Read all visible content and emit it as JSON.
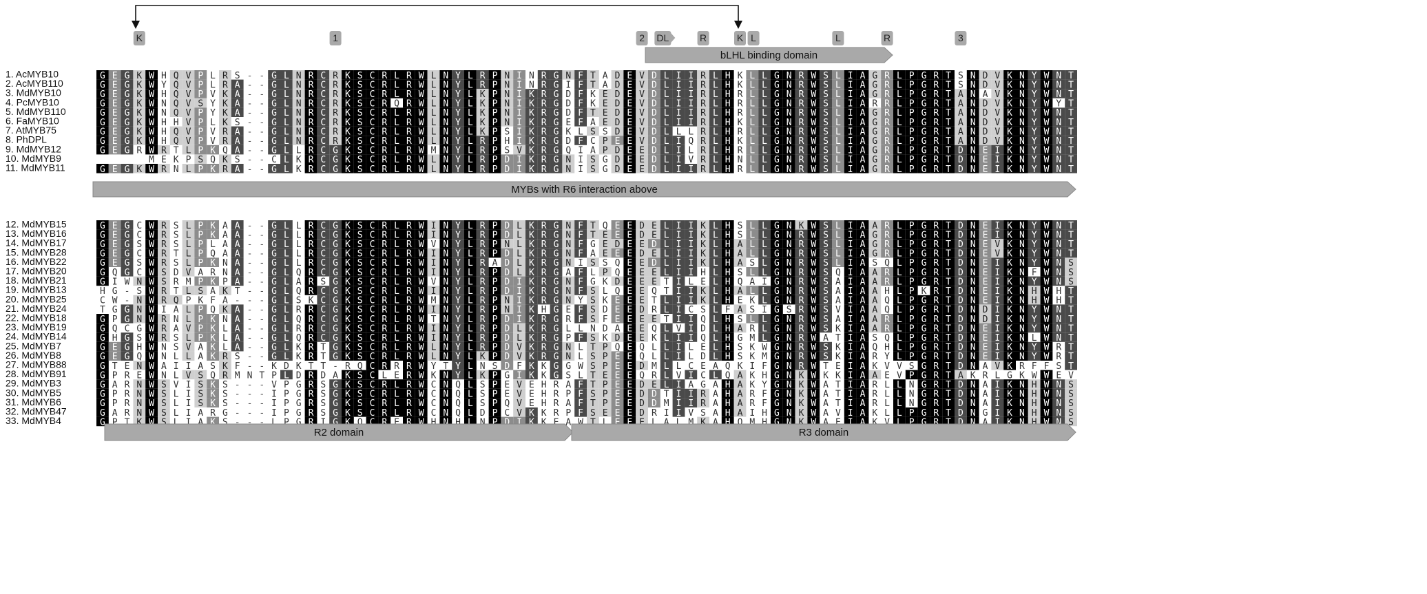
{
  "annotations": [
    "K",
    "1",
    "2",
    "DL",
    "R",
    "K",
    "L",
    "L",
    "R",
    "3"
  ],
  "domains": {
    "blhl": "bLHL binding domain",
    "r6": "MYBs with R6 interaction above",
    "r2": "R2 domain",
    "r3": "R3 domain"
  },
  "groups": [
    {
      "rows": [
        {
          "label": "1. AcMYB10",
          "sequence": "GEGKWHQVPLRS--GLNRCRKSCRLRWLNYLRPNINRGNFTADEVDLIIRLHKLLGNRWSLIAGRLPGRTSNDVKNYWNT"
        },
        {
          "label": "2. AcMYB110",
          "sequence": "GEGKWYQVPLRA--GLNRCRKSCRLRWLNYLRPNINRGIFTADEVDLIIRLHKLLGNRWSLIAGRLPGRTSNDVKNYWNT"
        },
        {
          "label": "3. MdMYB10",
          "sequence": "GEGKWHQVPVKA--GLNRCRKSCRLRWLNYLKPNIKRGDFKEDEVDLIIRLHRLLGNRWSLIAGRLPGRTANAVKNYWNT"
        },
        {
          "label": "4. PcMYB10",
          "sequence": "GEGKWNQVSYKA--GLNRCRKSCRQRWLNYLKPNIKRGDFKEDEVDLIIRLHRLLGNRWSLIARRLPGRTANDVKNYWYT"
        },
        {
          "label": "5. MdMYB110",
          "sequence": "GEGKWNQVPYKA--GLNRCRKSCRLRWLNYLKPNIKRGDFTEDEVDLIIRLHRLLGNRWSLIAGRLPGRTANDVKNYWNT"
        },
        {
          "label": "6. FaMYB10",
          "sequence": "GEGKWHHVPLKS--GLNRCRKSCRLRWLNYLKPNIKRGEFAEDEVDLIIRLHKLLGNRWSLIAGRLPGRTANDVKNYWNT"
        },
        {
          "label": "7. AtMYB75",
          "sequence": "GEGKWHQVPVRA--GLNRCRKSCRLRWLNYLKPSIKRGKLSSDEVDLLLRLHRLLGNRWSLIAGRLPGRTANDVKNYWNT"
        },
        {
          "label": "8. PhDPL",
          "sequence": "GEGKWHQVPVRA--GLNRCRKSCRLRWLNYLRPHIKRGDFCPEEVDLIQRLHKLLGNRWSLIAGRLPGRTANDVKNYWNT"
        },
        {
          "label": "9. MdMYB12",
          "sequence": "GEGRWRTLPKQA--GLLRCGKSCRLRWMNYLRPSVKRGQIAPDEEDLILRLHRLLGNRWSLIAGRLPGRTDNEIKNYWNT"
        },
        {
          "label": "10. MdMYB9",
          "sequence": "    MEKPSQKS--CLKRCGKSCRLRWLNYLRPDIKRGNISGDEEDLIVRLHNLLGNRWSLIAGRLPGRTDNEIKNYWNT"
        },
        {
          "label": "11. MdMYB11",
          "sequence": "GEGKWRNLPKRA--GLKRCGKSCRLRWLNYLRPDIKRGNISGDEEDLIIRLHRLLGNRWSLIAGRLPGRTDNEIKNYWNT"
        }
      ]
    },
    {
      "rows": [
        {
          "label": "12. MdMYB15",
          "sequence": "GEGCWRSLPKAA--GLLRCGKSCRLRWINYLRPDLKRGNFTQEEDELIIKLHSLLGNKWSLIAARLPGRTDNEIKNYWNT"
        },
        {
          "label": "13. MdMYB16",
          "sequence": "GEGCWRSLPKAA--GLLRCGKSCRLRWINYLRPDLKRGNFTEEEDELIIKLHSLLGNRWSLIAGRLPGRTDNEIKNYWNT"
        },
        {
          "label": "14. MdMYB17",
          "sequence": "GEGSWRSLPLAA--GLLRCGKSCRLRWVNYLRPNLKRGNFGEDEEDLIIKLHALLGNRWSLIAGRLPGRTDNEVKNYWNT"
        },
        {
          "label": "15. MdMYB28",
          "sequence": "GEGCWRTLPQAA--GLLRCGKSCRLRWINYLRPDLKRGNFAEEEDELIIKLHALLGNRWSLIAGRLPGRTDNEVKNYWNT"
        },
        {
          "label": "16. MdMYB22",
          "sequence": "GEGSWRSLPKNA--GLLRCGKSCRLRWINYLRADLKRGNISSQEEDLIIKLHASLGNRWSLIASQLPGRTDNEIKNYWNS"
        },
        {
          "label": "17. MdMYB20",
          "sequence": "GQGCWSDVARNA--GLQRCGKSCRLRWINYLRPDLKRGAFLPQEEELIIHLHSLLGNRWSQIAARLPGRTDNEIKNFWNS"
        },
        {
          "label": "18. MdMYB21",
          "sequence": "GIWNWSRMPKPA--GLARSGKSCRLRWVNYLRPDIKRGNFGKDEEETILELHQAIGNRWSAIAARLPGRTDNEIKNYWNS"
        },
        {
          "label": "19. MdMYB13",
          "sequence": "HG-SWRTLSAKT--GLQRCGKSCRLRWINYLRPDIKRGNFSLQEEQTIIKLHALLGNRWSAIAAHLPKRTDNEIKNHWHT"
        },
        {
          "label": "20. MdMYB25",
          "sequence": "CW-NWRQPKFA---GLSKCGKSCRLRWMNYLRPNIKRGNYSKEEETLIIKLHEKLGNRWSAIAAQLPGRTDNEIKNHWHT"
        },
        {
          "label": "21. MdMYB24",
          "sequence": "TGGNWIALPQKA--GLRRCGKSCRLRWINYLRPNIKHGEFSDEEDRLICSLFASIGSRWSVIAAQLPGRTDNDIKNYWNT"
        },
        {
          "label": "22. MdMYB18",
          "sequence": "GPGNWRNLPKNA--GLQRCGKSCRLRWTNYLRPDIKRGRFSFEEEETIIQLHSLLGNRWSAIAARLPGRTDNDIKNYWNT"
        },
        {
          "label": "23. MdMYB19",
          "sequence": "GQCGWRAVPKLA--GLRRCGKSCRLRWINYLRPDLKRGLLNDAEEQLVIDLHARLGNRWSKIAARLPGRTDNEIKNYWNT"
        },
        {
          "label": "24. MdMYB14",
          "sequence": "GHGSWRSLPKLA--GLQRCGKSCRLRWINYLRPDLKRGPFSKDEEKLIIQLHGMLGNRWATIASQLPGRTDNEIKNLWNT"
        },
        {
          "label": "25. MdMYB7",
          "sequence": "GEGHWNSVAKLA--GLKRTGKSCRLRWLNYLRPDVKRGNLTPQEQLLILELHSKWGNRWSKIAQHLPGRTDNEIKNYWRT"
        },
        {
          "label": "26. MdMYB8",
          "sequence": "GEGQWNLLAKRS--GLKRTGKSCRLRWLNYLKPDVKRGNLSPEEQLLILDLHSKMGNRWSKIARYLPGRTDNEIKNYWRT"
        },
        {
          "label": "27. MdMYB88",
          "sequence": "GTENWAIIASKF--KDKTT-RQCRRRWYTYLNSDFKKGGWSPEEDMLLCEAQKIFGNRWTEIAKVVSGRTDNAVKRFFST"
        },
        {
          "label": "28. MdMYB91",
          "sequence": "GPREWNLVSQRMNTPLDRDAKSCLERWKNYLKPGIKKGSLTEEEQRLVICLQAKHGNKWKKIAAEVPGRTAKRLGKWWEV"
        },
        {
          "label": "29. MdMYB3",
          "sequence": "GARNWSVISKS---VPGRSGKSCRLRWCNQLSPEVEHRAFTPEEDELIAGAHAKYGNKWATIARLLNGRTDNAIKNHWNS"
        },
        {
          "label": "30. MdMYB5",
          "sequence": "GPRNWSLISKS---IPGRSGKSCRLRWCNQLSPEVEHRPFSPEEDDTIIRAHARFGNKWATIARLLNGRTDNAIKNHWNS"
        },
        {
          "label": "31. MdMYB6",
          "sequence": "GPRNWSLISKS---IPGRSGKSCRLRWCNQLSPQVEHRAFTPEEDDMIIRAHARFGNKWATIARLLNGRTDNAIKNHWNS"
        },
        {
          "label": "32. MdMYB47",
          "sequence": "GARNWSLIARG---IPGRSGKSCRLRWCNQLDPCVKKRPFSEEEDRIIVSAHAIHGNKWAVIAKLLPGRTDNGIKNHWNS"
        },
        {
          "label": "33. MdMYB4",
          "sequence": "GPTKWSLIAKS---LPGRIGKQCRERWHNHLNPDIKKEAWTLEEELALMKAHQMHGNKWAEIAKVLPGRTDNAIKNHWNS"
        }
      ]
    }
  ]
}
